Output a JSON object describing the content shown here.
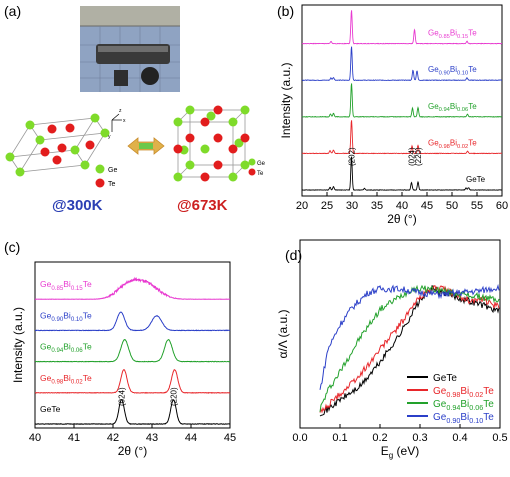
{
  "panels": {
    "a": {
      "label": "(a)",
      "lattice_left": {
        "temperature": "@300K"
      },
      "lattice_right": {
        "temperature": "@673K"
      },
      "legend": {
        "ge": "Ge",
        "te": "Te"
      },
      "axes_labels": {
        "x": "x",
        "y": "y",
        "z": "z"
      },
      "colors": {
        "ge": "#7fdb2a",
        "te": "#e21d1d",
        "arrow": "#e0b14a",
        "arrow_inner": "#6cc84a",
        "cell": "#888888",
        "temp_left": "#2b3fb3",
        "temp_right": "#cc2020"
      }
    },
    "b": {
      "label": "(b)"
    },
    "c": {
      "label": "(c)"
    },
    "d": {
      "label": "(d)"
    }
  },
  "chart_data": [
    {
      "panel": "b",
      "type": "line",
      "xlabel": "2θ (°)",
      "ylabel": "Intensity (a.u.)",
      "xlim": [
        20,
        60
      ],
      "xticks": [
        20,
        25,
        30,
        35,
        40,
        45,
        50,
        55,
        60
      ],
      "series": [
        {
          "name": "GeTe",
          "base": "Ge",
          "sub1": "",
          "mid": "Bi",
          "sub2": "",
          "end": "Te",
          "color": "#000000",
          "peaks": [
            [
              25.6,
              0.08
            ],
            [
              26.3,
              0.1
            ],
            [
              29.9,
              1.0
            ],
            [
              32.5,
              0.05
            ],
            [
              41.9,
              0.22
            ],
            [
              43.2,
              0.24
            ],
            [
              52.8,
              0.06
            ],
            [
              53.3,
              0.07
            ]
          ]
        },
        {
          "name": "Ge0.98Bi0.02Te",
          "base": "Ge",
          "sub1": "0.98",
          "mid": "Bi",
          "sub2": "0.02",
          "end": "Te",
          "color": "#e8272b",
          "peaks": [
            [
              25.6,
              0.08
            ],
            [
              26.3,
              0.1
            ],
            [
              29.9,
              1.0
            ],
            [
              42.0,
              0.22
            ],
            [
              43.2,
              0.24
            ],
            [
              53.1,
              0.07
            ]
          ]
        },
        {
          "name": "Ge0.94Bi0.06Te",
          "base": "Ge",
          "sub1": "0.94",
          "mid": "Bi",
          "sub2": "0.06",
          "end": "Te",
          "color": "#22a12b",
          "peaks": [
            [
              25.7,
              0.08
            ],
            [
              26.3,
              0.1
            ],
            [
              29.9,
              1.0
            ],
            [
              42.1,
              0.26
            ],
            [
              43.2,
              0.28
            ],
            [
              53.1,
              0.08
            ]
          ]
        },
        {
          "name": "Ge0.90Bi0.10Te",
          "base": "Ge",
          "sub1": "0.90",
          "mid": "Bi",
          "sub2": "0.10",
          "end": "Te",
          "color": "#2b3fc8",
          "peaks": [
            [
              25.8,
              0.07
            ],
            [
              26.3,
              0.08
            ],
            [
              29.9,
              1.0
            ],
            [
              42.2,
              0.3
            ],
            [
              43.0,
              0.28
            ],
            [
              53.0,
              0.08
            ]
          ]
        },
        {
          "name": "Ge0.85Bi0.15Te",
          "base": "Ge",
          "sub1": "0.85",
          "mid": "Bi",
          "sub2": "0.15",
          "end": "Te",
          "color": "#e83ad0",
          "peaks": [
            [
              25.8,
              0.06
            ],
            [
              29.9,
              1.0
            ],
            [
              42.5,
              0.42
            ],
            [
              53.0,
              0.07
            ]
          ]
        }
      ],
      "annotations": [
        {
          "text": "(202)",
          "x": 29.9
        },
        {
          "text": "(024)",
          "x": 41.9
        },
        {
          "text": "(220)",
          "x": 43.2
        }
      ]
    },
    {
      "panel": "c",
      "type": "line",
      "xlabel": "2θ (°)",
      "ylabel": "Intensity (a.u.)",
      "xlim": [
        40,
        45
      ],
      "xticks": [
        40,
        41,
        42,
        43,
        44,
        45
      ],
      "series": [
        {
          "name": "GeTe",
          "base": "Ge",
          "sub1": "",
          "mid": "Bi",
          "sub2": "",
          "end": "Te",
          "color": "#000000",
          "peaks": [
            [
              42.22,
              1.0,
              0.07
            ],
            [
              43.55,
              1.0,
              0.07
            ]
          ]
        },
        {
          "name": "Ge0.98Bi0.02Te",
          "base": "Ge",
          "sub1": "0.98",
          "mid": "Bi",
          "sub2": "0.02",
          "end": "Te",
          "color": "#e8272b",
          "peaks": [
            [
              42.28,
              0.95,
              0.08
            ],
            [
              43.58,
              0.95,
              0.08
            ]
          ]
        },
        {
          "name": "Ge0.94Bi0.06Te",
          "base": "Ge",
          "sub1": "0.94",
          "mid": "Bi",
          "sub2": "0.06",
          "end": "Te",
          "color": "#22a12b",
          "peaks": [
            [
              42.3,
              0.9,
              0.1
            ],
            [
              43.42,
              0.9,
              0.1
            ]
          ]
        },
        {
          "name": "Ge0.90Bi0.10Te",
          "base": "Ge",
          "sub1": "0.90",
          "mid": "Bi",
          "sub2": "0.10",
          "end": "Te",
          "color": "#2b3fc8",
          "peaks": [
            [
              42.2,
              0.75,
              0.1
            ],
            [
              43.12,
              0.6,
              0.13
            ]
          ]
        },
        {
          "name": "Ge0.85Bi0.15Te",
          "base": "Ge",
          "sub1": "0.85",
          "mid": "Bi",
          "sub2": "0.15",
          "end": "Te",
          "color": "#e83ad0",
          "peaks": [
            [
              42.4,
              0.6,
              0.28
            ],
            [
              42.9,
              0.55,
              0.3
            ]
          ]
        }
      ],
      "annotations": [
        {
          "text": "(024)",
          "x": 42.22
        },
        {
          "text": "(220)",
          "x": 43.55
        }
      ]
    },
    {
      "panel": "d",
      "type": "line",
      "xlabel": "Eg (eV)",
      "xlabel_base": "E",
      "xlabel_sub": "g",
      "xlabel_unit": " (eV)",
      "ylabel": "α/Λ (a.u.)",
      "xlim": [
        0.0,
        0.5
      ],
      "xticks": [
        0.0,
        0.1,
        0.2,
        0.3,
        0.4,
        0.5
      ],
      "ylim": [
        0,
        1
      ],
      "series": [
        {
          "name": "GeTe",
          "base": "Ge",
          "sub1": "",
          "mid": "Bi",
          "sub2": "",
          "end": "Te",
          "color": "#000000",
          "points": [
            [
              0.05,
              0.08
            ],
            [
              0.07,
              0.1
            ],
            [
              0.1,
              0.15
            ],
            [
              0.15,
              0.22
            ],
            [
              0.2,
              0.35
            ],
            [
              0.25,
              0.5
            ],
            [
              0.3,
              0.68
            ],
            [
              0.33,
              0.74
            ],
            [
              0.36,
              0.72
            ],
            [
              0.4,
              0.69
            ],
            [
              0.45,
              0.66
            ],
            [
              0.5,
              0.62
            ]
          ]
        },
        {
          "name": "Ge0.98Bi0.02Te",
          "base": "Ge",
          "sub1": "0.98",
          "mid": "Bi",
          "sub2": "0.02",
          "end": "Te",
          "color": "#e8272b",
          "points": [
            [
              0.05,
              0.08
            ],
            [
              0.07,
              0.12
            ],
            [
              0.1,
              0.18
            ],
            [
              0.15,
              0.28
            ],
            [
              0.2,
              0.42
            ],
            [
              0.25,
              0.55
            ],
            [
              0.3,
              0.7
            ],
            [
              0.34,
              0.75
            ],
            [
              0.38,
              0.72
            ],
            [
              0.42,
              0.68
            ],
            [
              0.46,
              0.68
            ],
            [
              0.5,
              0.64
            ]
          ]
        },
        {
          "name": "Ge0.94Bi0.06Te",
          "base": "Ge",
          "sub1": "0.94",
          "mid": "Bi",
          "sub2": "0.06",
          "end": "Te",
          "color": "#22a12b",
          "points": [
            [
              0.05,
              0.1
            ],
            [
              0.07,
              0.2
            ],
            [
              0.1,
              0.3
            ],
            [
              0.15,
              0.48
            ],
            [
              0.2,
              0.63
            ],
            [
              0.25,
              0.7
            ],
            [
              0.28,
              0.74
            ],
            [
              0.33,
              0.74
            ],
            [
              0.38,
              0.72
            ],
            [
              0.44,
              0.7
            ],
            [
              0.5,
              0.68
            ]
          ]
        },
        {
          "name": "Ge0.90Bi0.10Te",
          "base": "Ge",
          "sub1": "0.90",
          "mid": "Bi",
          "sub2": "0.10",
          "end": "Te",
          "color": "#2b3fc8",
          "points": [
            [
              0.05,
              0.2
            ],
            [
              0.07,
              0.42
            ],
            [
              0.1,
              0.55
            ],
            [
              0.13,
              0.64
            ],
            [
              0.17,
              0.72
            ],
            [
              0.2,
              0.74
            ],
            [
              0.25,
              0.74
            ],
            [
              0.3,
              0.72
            ],
            [
              0.35,
              0.71
            ],
            [
              0.4,
              0.72
            ],
            [
              0.45,
              0.73
            ],
            [
              0.5,
              0.75
            ]
          ]
        }
      ]
    }
  ]
}
